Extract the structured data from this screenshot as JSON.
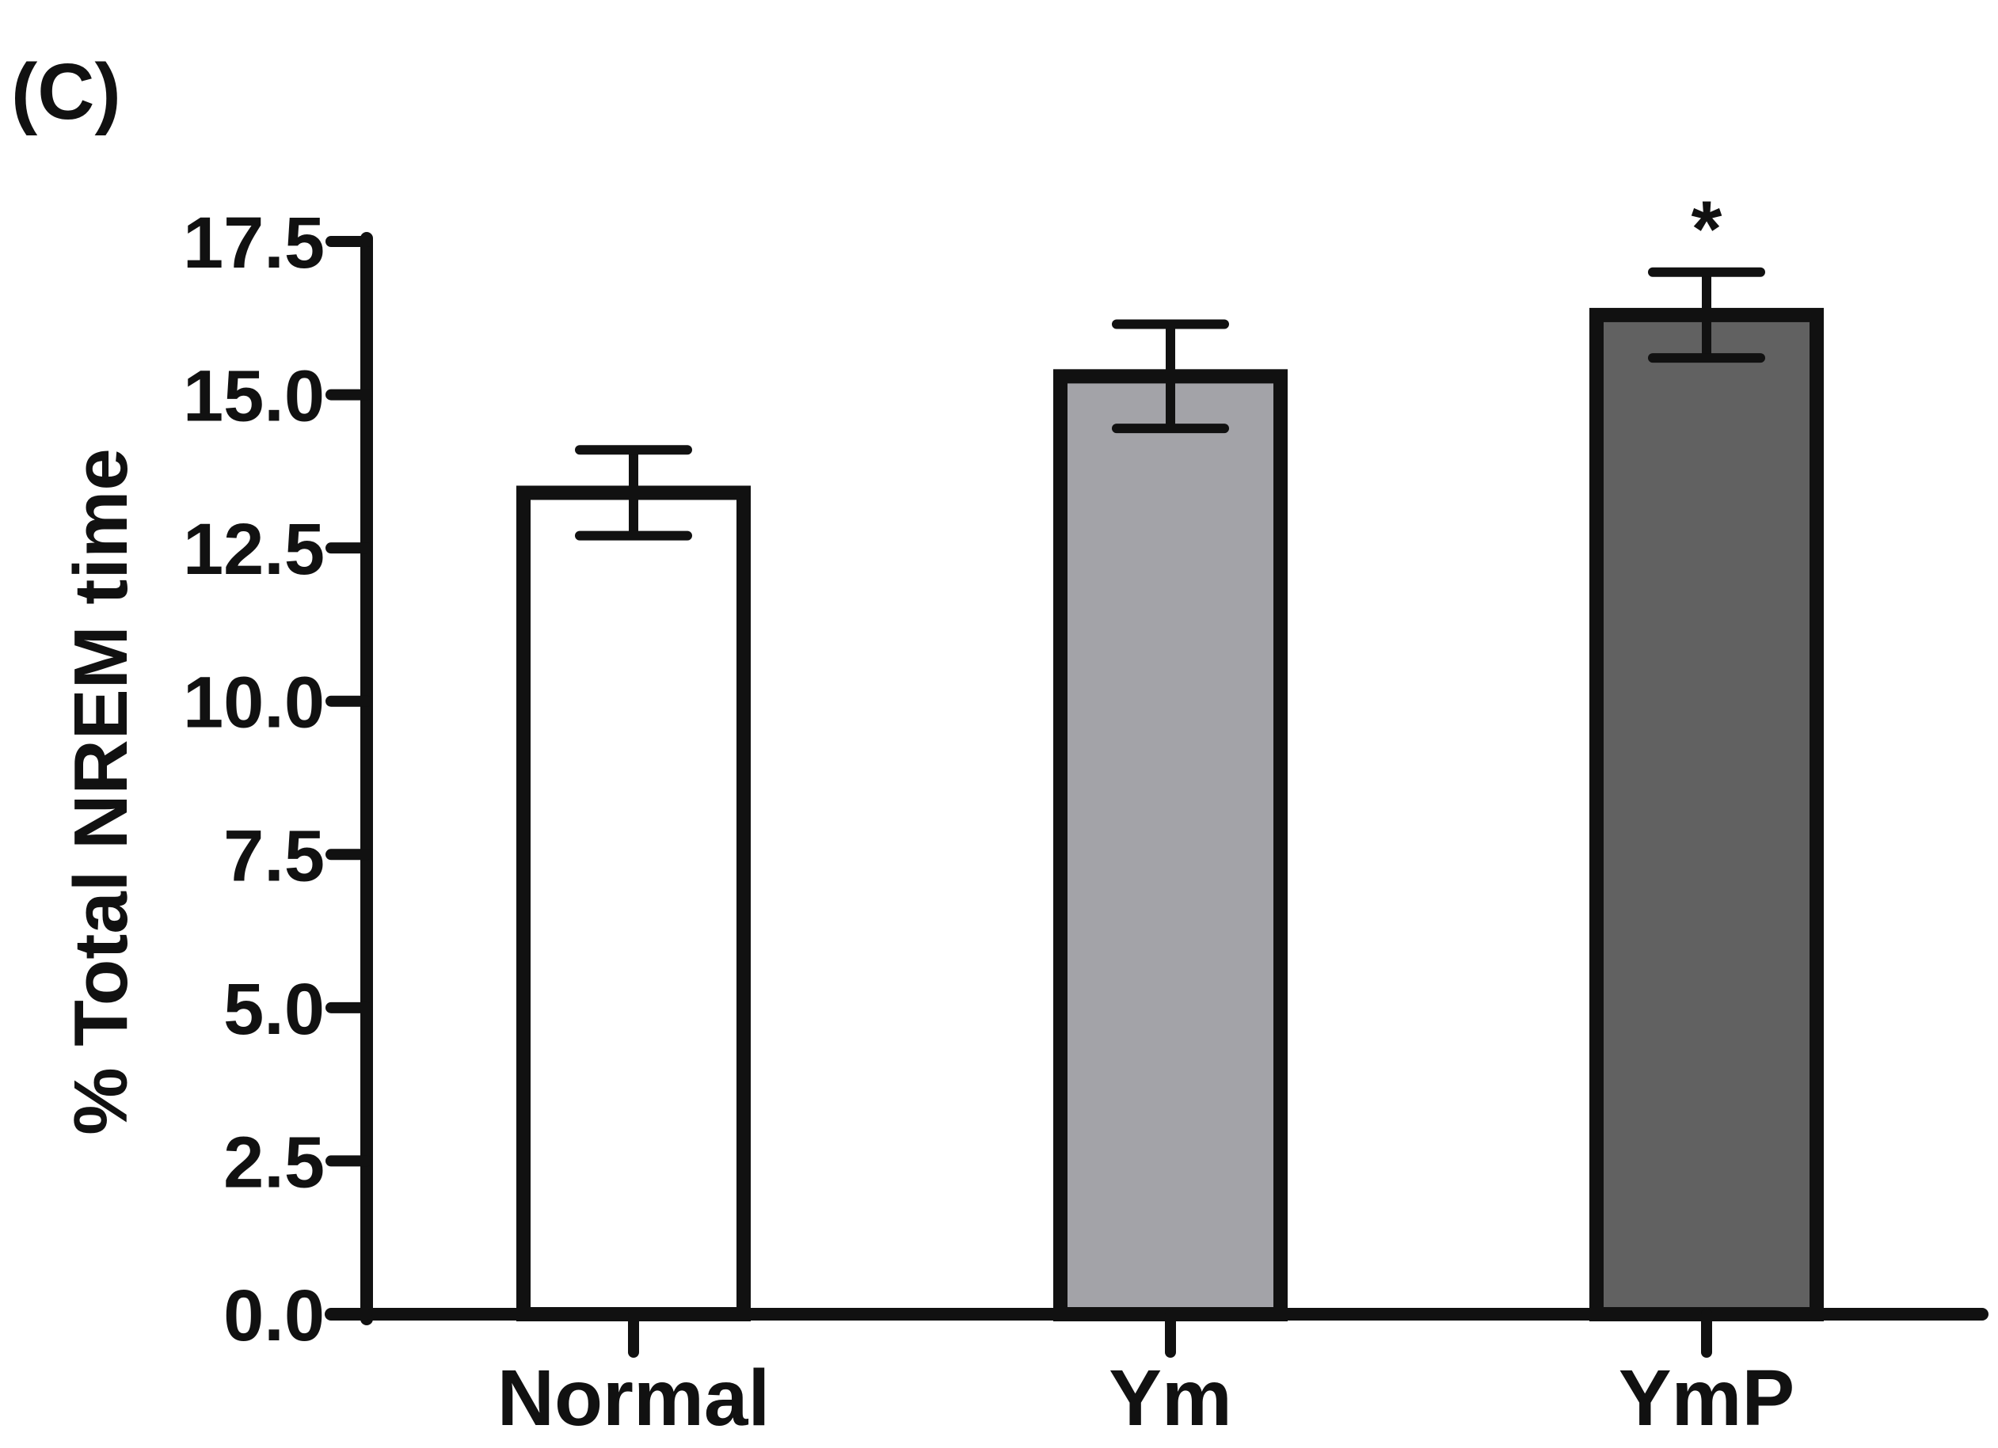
{
  "panel_label": "(C)",
  "chart_data": {
    "type": "bar",
    "title": "",
    "xlabel": "",
    "ylabel": "% Total NREM time",
    "ylim": [
      0,
      17.5
    ],
    "yticks": [
      "0.0",
      "2.5",
      "5.0",
      "7.5",
      "10.0",
      "12.5",
      "15.0",
      "17.5"
    ],
    "categories": [
      "Normal",
      "Ym",
      "YmP"
    ],
    "values": [
      13.4,
      15.3,
      16.3
    ],
    "errors": [
      0.7,
      0.85,
      0.7
    ],
    "annotations": [
      "",
      "",
      "*"
    ],
    "colors": [
      "#ffffff",
      "#a3a3a8",
      "#616161"
    ],
    "grid": false,
    "legend": "none"
  }
}
